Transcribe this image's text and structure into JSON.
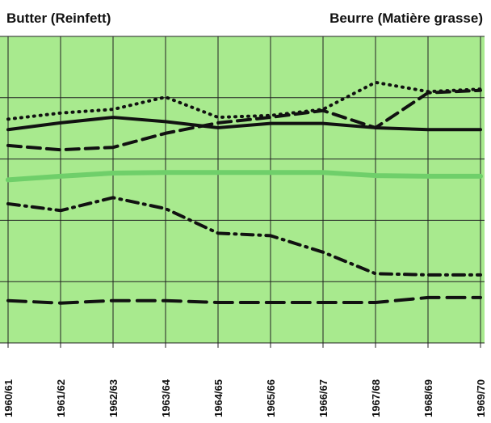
{
  "chart_data": {
    "type": "line",
    "title": "Butter (Reinfett)",
    "subtitle": "Beurre (Matière grasse)",
    "categories": [
      "1960/61",
      "1961/62",
      "1962/63",
      "1963/64",
      "1964/65",
      "1965/66",
      "1966/67",
      "1967/68",
      "1968/69",
      "1969/70"
    ],
    "series": [
      {
        "color": "#111111",
        "dash": "dotted",
        "values": [
          3.65,
          3.75,
          3.81,
          4.01,
          3.68,
          3.71,
          3.81,
          4.25,
          4.1,
          4.14
        ]
      },
      {
        "color": "#111111",
        "dash": "solid",
        "values": [
          3.48,
          3.59,
          3.68,
          3.61,
          3.51,
          3.58,
          3.58,
          3.51,
          3.48,
          3.48
        ]
      },
      {
        "color": "#111111",
        "dash": "dashed",
        "values": [
          3.22,
          3.15,
          3.19,
          3.42,
          3.59,
          3.68,
          3.79,
          3.51,
          4.08,
          4.12
        ]
      },
      {
        "color": "#6fcf6a",
        "dash": "solid",
        "values": [
          2.66,
          2.72,
          2.77,
          2.78,
          2.78,
          2.78,
          2.78,
          2.73,
          2.72,
          2.72
        ]
      },
      {
        "color": "#111111",
        "dash": "dashdot",
        "values": [
          2.27,
          2.16,
          2.37,
          2.19,
          1.79,
          1.75,
          1.48,
          1.13,
          1.11,
          1.11
        ]
      },
      {
        "color": "#111111",
        "dash": "longdash",
        "values": [
          0.69,
          0.65,
          0.69,
          0.69,
          0.66,
          0.66,
          0.66,
          0.66,
          0.74,
          0.74
        ]
      }
    ],
    "ylim": [
      0,
      5
    ],
    "yticks": [
      0,
      1,
      2,
      3,
      4,
      5
    ],
    "grid": true,
    "background": "#a8ea8e"
  }
}
